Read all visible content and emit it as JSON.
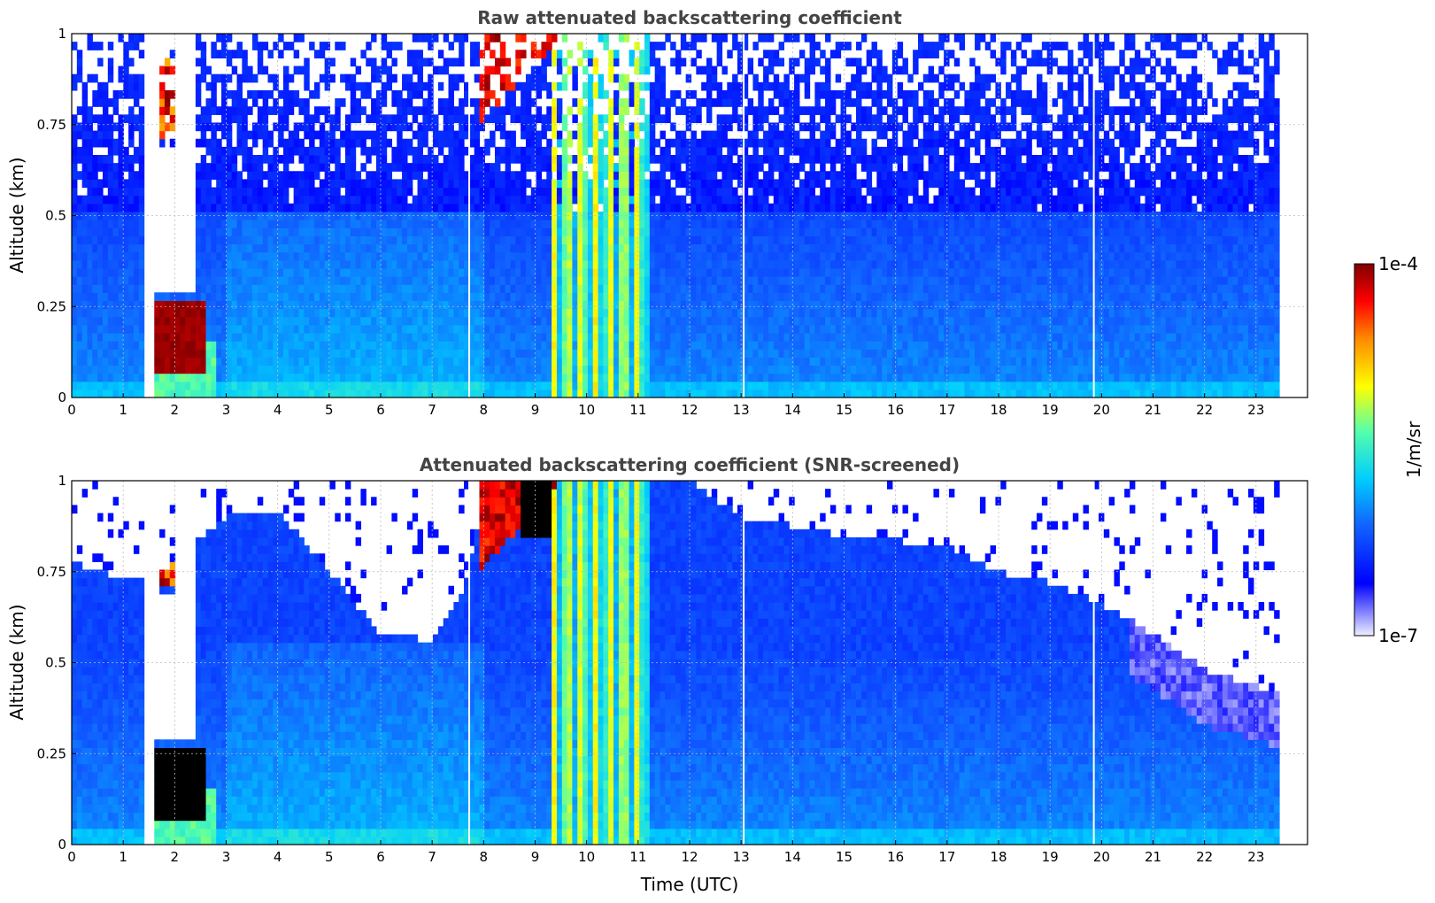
{
  "chart_data": [
    {
      "type": "heatmap",
      "title": "Raw attenuated backscattering coefficient",
      "xlabel": "",
      "ylabel": "Altitude (km)",
      "xlim": [
        0,
        24
      ],
      "ylim": [
        0,
        1
      ],
      "x_ticks": [
        0,
        1,
        2,
        3,
        4,
        5,
        6,
        7,
        8,
        9,
        10,
        11,
        12,
        13,
        14,
        15,
        16,
        17,
        18,
        19,
        20,
        21,
        22,
        23
      ],
      "y_ticks": [
        "0",
        "0.25",
        "0.5",
        "0.75",
        "1"
      ],
      "grid": true,
      "features": [
        {
          "label": "dense low cloud",
          "x": [
            1.6,
            2.6
          ],
          "y": [
            0.07,
            0.27
          ],
          "value_log10": -4
        },
        {
          "label": "elevated layer",
          "x": [
            7.9,
            9.4
          ],
          "y": [
            0.75,
            1.0
          ],
          "value_log10": -4
        },
        {
          "label": "precipitation streaks",
          "x": [
            9.3,
            11.2
          ],
          "y": [
            0.0,
            1.0
          ],
          "value_log10": -5.2
        }
      ],
      "data_gaps_x": [
        1.45,
        1.55,
        7.72,
        13.05,
        19.85
      ]
    },
    {
      "type": "heatmap",
      "title": "Attenuated backscattering coefficient (SNR-screened)",
      "xlabel": "Time (UTC)",
      "ylabel": "Altitude (km)",
      "xlim": [
        0,
        24
      ],
      "ylim": [
        0,
        1
      ],
      "x_ticks": [
        0,
        1,
        2,
        3,
        4,
        5,
        6,
        7,
        8,
        9,
        10,
        11,
        12,
        13,
        14,
        15,
        16,
        17,
        18,
        19,
        20,
        21,
        22,
        23
      ],
      "y_ticks": [
        "0",
        "0.25",
        "0.5",
        "0.75",
        "1"
      ],
      "grid": true,
      "screened_top_km": [
        [
          0.0,
          0.78
        ],
        [
          0.5,
          0.75
        ],
        [
          1.5,
          0.72
        ],
        [
          3.0,
          0.9
        ],
        [
          4.0,
          0.92
        ],
        [
          5.0,
          0.75
        ],
        [
          6.0,
          0.58
        ],
        [
          7.0,
          0.56
        ],
        [
          7.6,
          0.7
        ],
        [
          8.0,
          0.95
        ],
        [
          9.0,
          1.0
        ],
        [
          12.0,
          1.0
        ],
        [
          13.0,
          0.9
        ],
        [
          15.0,
          0.85
        ],
        [
          17.0,
          0.82
        ],
        [
          18.0,
          0.75
        ],
        [
          19.0,
          0.72
        ],
        [
          20.0,
          0.66
        ],
        [
          21.0,
          0.58
        ],
        [
          22.0,
          0.48
        ],
        [
          23.4,
          0.42
        ]
      ]
    }
  ],
  "colorbar": {
    "max_label": "1e-4",
    "min_label": "1e-7",
    "unit": "1/m/sr",
    "range_log10": [
      -7,
      -4
    ]
  },
  "colors": {
    "grid": "#bbbbbb"
  }
}
